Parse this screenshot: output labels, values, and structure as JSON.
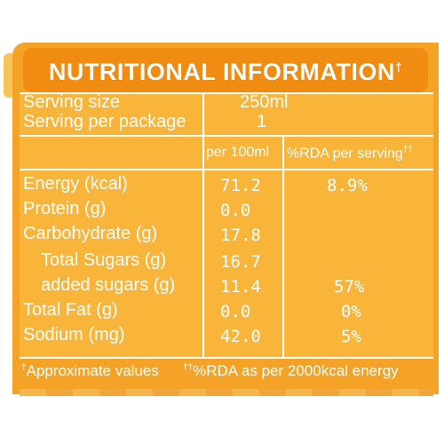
{
  "title": "NUTRITIONAL INFORMATION",
  "title_mark": "†",
  "serving_size_label": "Serving size",
  "serving_size_value": "250ml",
  "serving_per_package_label": "Serving per package",
  "serving_per_package_value": "1",
  "columns": {
    "per100": "per 100ml",
    "rda": "%RDA per serving",
    "rda_mark": "††"
  },
  "rows": [
    {
      "label": "Energy (kcal)",
      "per100": "71.2",
      "rda": "8.9%"
    },
    {
      "label": "Protein (g)",
      "per100": "0.0",
      "rda": ""
    },
    {
      "label": "Carbohydrate (g)",
      "per100": "17.8",
      "rda": ""
    },
    {
      "label": "Total Sugars (g)",
      "per100": "16.7",
      "rda": ""
    },
    {
      "label": "added sugars (g)",
      "per100": "11.4",
      "rda": "57%"
    },
    {
      "label": "Total Fat (g)",
      "per100": "0.0",
      "rda": "0%"
    },
    {
      "label": "Sodium (mg)",
      "per100": "42.0",
      "rda": "5%"
    }
  ],
  "footnote": {
    "left_mark": "†",
    "left": "Approximate values",
    "right_mark": "††",
    "right": "%RDA as per 2000kcal energy"
  },
  "colors": {
    "background": "#f4a326",
    "title_bar": "#f08c11",
    "text": "#ffffff"
  }
}
